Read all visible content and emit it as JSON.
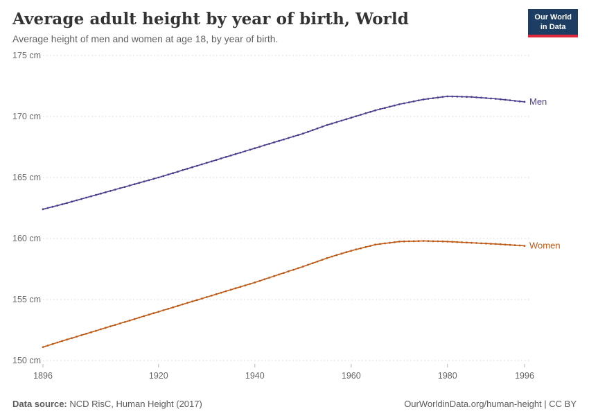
{
  "page": {
    "title": "Average adult height by year of birth, World",
    "subtitle": "Average height of men and women at age 18, by year of birth.",
    "logo": {
      "line1": "Our World",
      "line2": "in Data"
    },
    "footer": {
      "source_label": "Data source:",
      "source_text": " NCD RisC, Human Height (2017)",
      "right_text": "OurWorldinData.org/human-height | CC BY"
    }
  },
  "chart_data": {
    "type": "line",
    "title": "Average adult height by year of birth, World",
    "subtitle": "Average height of men and women at age 18, by year of birth.",
    "xlabel": "",
    "ylabel": "",
    "x_start": 1896,
    "x_step": 1,
    "x_end": 1996,
    "xlim": [
      1896,
      1996
    ],
    "ylim": [
      150,
      175
    ],
    "yticks": [
      150,
      155,
      160,
      165,
      170,
      175
    ],
    "ytick_suffix": " cm",
    "xticks": [
      1896,
      1920,
      1940,
      1960,
      1980,
      1996
    ],
    "grid": "dashed-horizontal",
    "legend_position": "end-of-line",
    "series": [
      {
        "name": "Men",
        "color": "#4c3b8c",
        "values": [
          162.4,
          162.5,
          162.6,
          162.7,
          162.8,
          162.91,
          163.02,
          163.13,
          163.24,
          163.35,
          163.46,
          163.57,
          163.68,
          163.79,
          163.9,
          164.01,
          164.12,
          164.23,
          164.34,
          164.45,
          164.56,
          164.67,
          164.78,
          164.89,
          165.0,
          165.12,
          165.24,
          165.36,
          165.48,
          165.6,
          165.72,
          165.84,
          165.96,
          166.08,
          166.2,
          166.32,
          166.44,
          166.56,
          166.68,
          166.8,
          166.92,
          167.04,
          167.16,
          167.28,
          167.4,
          167.52,
          167.64,
          167.76,
          167.88,
          168.0,
          168.12,
          168.24,
          168.36,
          168.48,
          168.6,
          168.74,
          168.88,
          169.02,
          169.16,
          169.3,
          169.42,
          169.54,
          169.66,
          169.78,
          169.9,
          170.02,
          170.14,
          170.26,
          170.38,
          170.5,
          170.6,
          170.7,
          170.8,
          170.9,
          171.0,
          171.08,
          171.16,
          171.24,
          171.32,
          171.4,
          171.45,
          171.5,
          171.55,
          171.6,
          171.65,
          171.64,
          171.63,
          171.62,
          171.61,
          171.6,
          171.57,
          171.54,
          171.51,
          171.48,
          171.45,
          171.41,
          171.37,
          171.33,
          171.28,
          171.24,
          171.2
        ]
      },
      {
        "name": "Women",
        "color": "#be5915",
        "values": [
          151.1,
          151.23,
          151.35,
          151.48,
          151.6,
          151.72,
          151.84,
          151.96,
          152.08,
          152.2,
          152.32,
          152.44,
          152.56,
          152.68,
          152.8,
          152.92,
          153.04,
          153.16,
          153.28,
          153.4,
          153.52,
          153.64,
          153.76,
          153.88,
          154.0,
          154.12,
          154.24,
          154.36,
          154.48,
          154.6,
          154.72,
          154.84,
          154.96,
          155.08,
          155.2,
          155.32,
          155.44,
          155.56,
          155.68,
          155.8,
          155.92,
          156.04,
          156.16,
          156.28,
          156.4,
          156.53,
          156.66,
          156.79,
          156.92,
          157.05,
          157.18,
          157.31,
          157.44,
          157.57,
          157.7,
          157.84,
          157.98,
          158.12,
          158.26,
          158.4,
          158.52,
          158.64,
          158.76,
          158.88,
          159.0,
          159.1,
          159.2,
          159.3,
          159.4,
          159.5,
          159.55,
          159.6,
          159.65,
          159.7,
          159.75,
          159.76,
          159.77,
          159.78,
          159.79,
          159.8,
          159.79,
          159.78,
          159.77,
          159.76,
          159.75,
          159.73,
          159.71,
          159.69,
          159.67,
          159.65,
          159.63,
          159.61,
          159.59,
          159.57,
          159.55,
          159.53,
          159.5,
          159.48,
          159.45,
          159.43,
          159.4
        ]
      }
    ]
  }
}
